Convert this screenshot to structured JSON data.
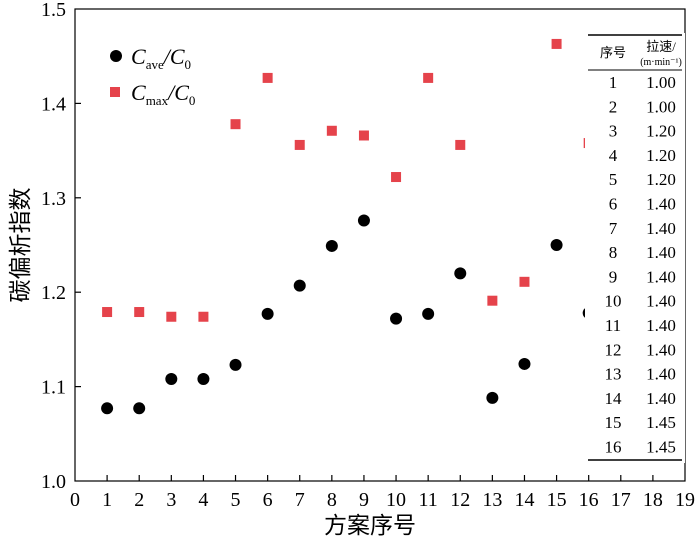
{
  "chart_data": {
    "type": "scatter",
    "xlabel": "方案序号",
    "ylabel": "碳偏析指数",
    "xlim": [
      0,
      19
    ],
    "ylim": [
      1.0,
      1.5
    ],
    "x_ticks": [
      "0",
      "1",
      "2",
      "3",
      "4",
      "5",
      "6",
      "7",
      "8",
      "9",
      "10",
      "11",
      "12",
      "13",
      "14",
      "15",
      "16",
      "17",
      "18",
      "19"
    ],
    "y_ticks": [
      "1.0",
      "1.1",
      "1.2",
      "1.3",
      "1.4",
      "1.5"
    ],
    "legend_position": "top-left",
    "grid": false,
    "series": [
      {
        "name": "Cave/C0",
        "name_main": "C",
        "name_sub": "ave",
        "name_rest": "/C",
        "name_rest_sub": "0",
        "marker": "circle",
        "color": "#000000",
        "x": [
          1,
          2,
          3,
          4,
          5,
          6,
          7,
          8,
          9,
          10,
          11,
          12,
          13,
          14,
          15,
          16
        ],
        "y": [
          1.077,
          1.077,
          1.108,
          1.108,
          1.123,
          1.177,
          1.207,
          1.249,
          1.276,
          1.172,
          1.177,
          1.22,
          1.088,
          1.124,
          1.25,
          1.178
        ]
      },
      {
        "name": "Cmax/C0",
        "name_main": "C",
        "name_sub": "max",
        "name_rest": "/C",
        "name_rest_sub": "0",
        "marker": "square",
        "color": "#e5434b",
        "x": [
          1,
          2,
          3,
          4,
          5,
          6,
          7,
          8,
          9,
          10,
          11,
          12,
          13,
          14,
          15,
          16
        ],
        "y": [
          1.179,
          1.179,
          1.174,
          1.174,
          1.378,
          1.427,
          1.356,
          1.371,
          1.366,
          1.322,
          1.427,
          1.356,
          1.191,
          1.211,
          1.463,
          1.358
        ]
      }
    ],
    "table": {
      "header_col1": "序号",
      "header_col2": "拉速/",
      "header_col2_unit": "(m·min⁻¹)",
      "rows": [
        [
          "1",
          "1.00"
        ],
        [
          "2",
          "1.00"
        ],
        [
          "3",
          "1.20"
        ],
        [
          "4",
          "1.20"
        ],
        [
          "5",
          "1.20"
        ],
        [
          "6",
          "1.40"
        ],
        [
          "7",
          "1.40"
        ],
        [
          "8",
          "1.40"
        ],
        [
          "9",
          "1.40"
        ],
        [
          "10",
          "1.40"
        ],
        [
          "11",
          "1.40"
        ],
        [
          "12",
          "1.40"
        ],
        [
          "13",
          "1.40"
        ],
        [
          "14",
          "1.40"
        ],
        [
          "15",
          "1.45"
        ],
        [
          "16",
          "1.45"
        ]
      ]
    }
  }
}
